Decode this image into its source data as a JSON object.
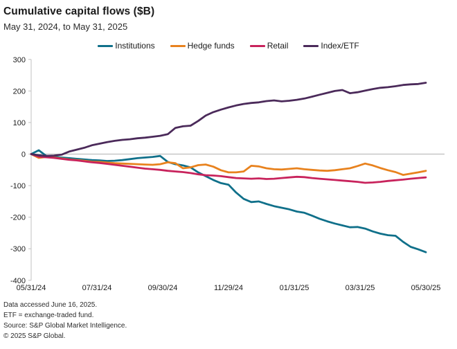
{
  "header": {
    "title": "Cumulative capital flows ($B)",
    "subtitle": "May 31, 2024, to May 31, 2025"
  },
  "footer": {
    "lines": [
      "Data accessed June 16, 2025.",
      "ETF = exchange-traded fund.",
      "Source: S&P Global Market Intelligence.",
      "© 2025 S&P Global."
    ]
  },
  "colors": {
    "axis": "#c2c2c2",
    "zero_line": "#b0b0b0",
    "text": "#1a1a1a"
  },
  "chart_data": {
    "type": "line",
    "title": "Cumulative capital flows ($B)",
    "xlabel": "",
    "ylabel": "",
    "ylim": [
      -400,
      300
    ],
    "y_ticks": [
      300,
      200,
      100,
      0,
      -100,
      -200,
      -300,
      -400
    ],
    "x_tick_labels": [
      "05/31/24",
      "07/31/24",
      "09/30/24",
      "11/29/24",
      "01/31/25",
      "03/31/25",
      "05/30/25"
    ],
    "x_sampling": "weekly points from 05/31/24 to 05/30/25",
    "grid": "zero baseline only",
    "legend_position": "top-center",
    "series": [
      {
        "name": "Institutions",
        "color": "#10708A",
        "values": [
          0,
          12,
          -6,
          -9,
          -11,
          -13,
          -15,
          -17,
          -19,
          -20,
          -22,
          -21,
          -19,
          -16,
          -13,
          -11,
          -9,
          -6,
          -25,
          -32,
          -36,
          -42,
          -58,
          -70,
          -82,
          -92,
          -97,
          -122,
          -142,
          -152,
          -150,
          -158,
          -165,
          -170,
          -175,
          -182,
          -186,
          -195,
          -205,
          -213,
          -220,
          -226,
          -232,
          -231,
          -236,
          -245,
          -252,
          -257,
          -259,
          -278,
          -294,
          -302,
          -311
        ]
      },
      {
        "name": "Hedge funds",
        "color": "#E8821E",
        "values": [
          0,
          -12,
          -9,
          -11,
          -14,
          -17,
          -19,
          -21,
          -24,
          -25,
          -27,
          -29,
          -30,
          -31,
          -32,
          -33,
          -34,
          -32,
          -26,
          -29,
          -45,
          -42,
          -35,
          -33,
          -40,
          -51,
          -58,
          -58,
          -55,
          -37,
          -39,
          -45,
          -48,
          -49,
          -47,
          -45,
          -48,
          -50,
          -52,
          -53,
          -51,
          -48,
          -45,
          -38,
          -30,
          -36,
          -44,
          -51,
          -57,
          -66,
          -62,
          -58,
          -53
        ]
      },
      {
        "name": "Retail",
        "color": "#C8235C",
        "values": [
          0,
          -8,
          -10,
          -12,
          -15,
          -18,
          -20,
          -23,
          -26,
          -28,
          -31,
          -34,
          -37,
          -40,
          -43,
          -46,
          -48,
          -50,
          -53,
          -55,
          -57,
          -60,
          -64,
          -67,
          -68,
          -70,
          -73,
          -76,
          -77,
          -78,
          -77,
          -79,
          -78,
          -76,
          -74,
          -72,
          -73,
          -76,
          -78,
          -80,
          -82,
          -84,
          -86,
          -88,
          -91,
          -90,
          -88,
          -85,
          -83,
          -81,
          -78,
          -76,
          -74
        ]
      },
      {
        "name": "Index/ETF",
        "color": "#4B2A5A",
        "values": [
          0,
          -4,
          -6,
          -5,
          -2,
          8,
          14,
          20,
          28,
          33,
          38,
          42,
          45,
          47,
          50,
          52,
          55,
          58,
          63,
          83,
          88,
          90,
          105,
          122,
          133,
          141,
          148,
          154,
          159,
          162,
          164,
          168,
          170,
          167,
          169,
          172,
          176,
          182,
          188,
          194,
          200,
          203,
          193,
          196,
          201,
          206,
          210,
          212,
          215,
          219,
          221,
          222,
          226
        ]
      }
    ]
  }
}
